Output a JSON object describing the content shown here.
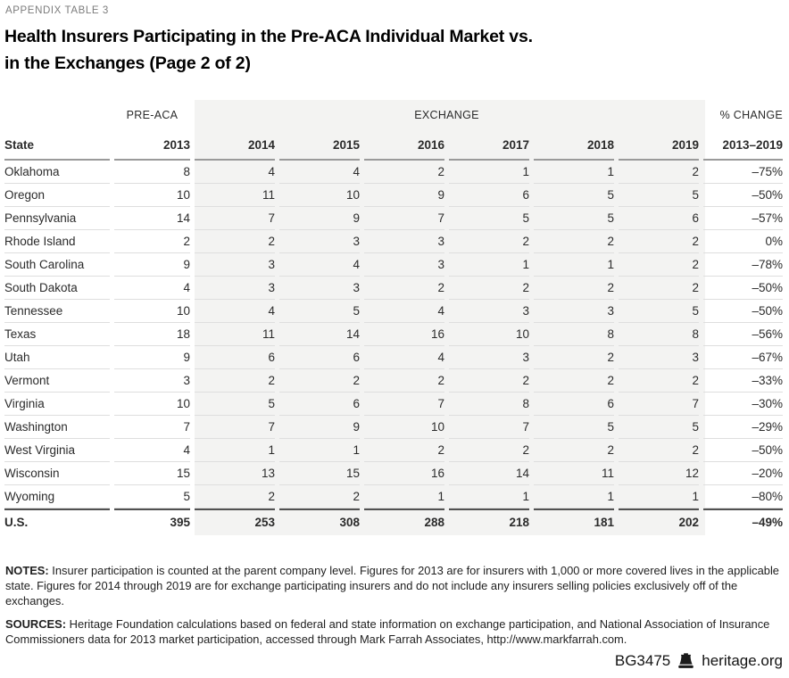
{
  "eyebrow": "APPENDIX TABLE 3",
  "title": "Health Insurers Participating in the Pre-ACA Individual Market vs.\nin the Exchanges (Page 2 of 2)",
  "table": {
    "group_headers": {
      "pre_aca": "PRE-ACA",
      "exchange": "EXCHANGE",
      "pct_change": "% CHANGE"
    },
    "columns": [
      "State",
      "2013",
      "2014",
      "2015",
      "2016",
      "2017",
      "2018",
      "2019",
      "2013–2019"
    ],
    "rows": [
      {
        "state": "Oklahoma",
        "values": [
          "8",
          "4",
          "4",
          "2",
          "1",
          "1",
          "2"
        ],
        "change": "–75%"
      },
      {
        "state": "Oregon",
        "values": [
          "10",
          "11",
          "10",
          "9",
          "6",
          "5",
          "5"
        ],
        "change": "–50%"
      },
      {
        "state": "Pennsylvania",
        "values": [
          "14",
          "7",
          "9",
          "7",
          "5",
          "5",
          "6"
        ],
        "change": "–57%"
      },
      {
        "state": "Rhode Island",
        "values": [
          "2",
          "2",
          "3",
          "3",
          "2",
          "2",
          "2"
        ],
        "change": "0%"
      },
      {
        "state": "South Carolina",
        "values": [
          "9",
          "3",
          "4",
          "3",
          "1",
          "1",
          "2"
        ],
        "change": "–78%"
      },
      {
        "state": "South Dakota",
        "values": [
          "4",
          "3",
          "3",
          "2",
          "2",
          "2",
          "2"
        ],
        "change": "–50%"
      },
      {
        "state": "Tennessee",
        "values": [
          "10",
          "4",
          "5",
          "4",
          "3",
          "3",
          "5"
        ],
        "change": "–50%"
      },
      {
        "state": "Texas",
        "values": [
          "18",
          "11",
          "14",
          "16",
          "10",
          "8",
          "8"
        ],
        "change": "–56%"
      },
      {
        "state": "Utah",
        "values": [
          "9",
          "6",
          "6",
          "4",
          "3",
          "2",
          "3"
        ],
        "change": "–67%"
      },
      {
        "state": "Vermont",
        "values": [
          "3",
          "2",
          "2",
          "2",
          "2",
          "2",
          "2"
        ],
        "change": "–33%"
      },
      {
        "state": "Virginia",
        "values": [
          "10",
          "5",
          "6",
          "7",
          "8",
          "6",
          "7"
        ],
        "change": "–30%"
      },
      {
        "state": "Washington",
        "values": [
          "7",
          "7",
          "9",
          "10",
          "7",
          "5",
          "5"
        ],
        "change": "–29%"
      },
      {
        "state": "West Virginia",
        "values": [
          "4",
          "1",
          "1",
          "2",
          "2",
          "2",
          "2"
        ],
        "change": "–50%"
      },
      {
        "state": "Wisconsin",
        "values": [
          "15",
          "13",
          "15",
          "16",
          "14",
          "11",
          "12"
        ],
        "change": "–20%"
      },
      {
        "state": "Wyoming",
        "values": [
          "5",
          "2",
          "2",
          "1",
          "1",
          "1",
          "1"
        ],
        "change": "–80%"
      }
    ],
    "total_row": {
      "state": "U.S.",
      "values": [
        "395",
        "253",
        "308",
        "288",
        "218",
        "181",
        "202"
      ],
      "change": "–49%"
    }
  },
  "notes": {
    "label": "NOTES:",
    "text": " Insurer participation is counted at the parent company level. Figures for 2013 are for insurers with 1,000 or more covered lives in the applicable state. Figures for 2014 through 2019 are for exchange participating insurers and do not include any insurers selling policies exclusively off of the exchanges."
  },
  "sources": {
    "label": "SOURCES:",
    "text": " Heritage Foundation calculations based on federal and state information on exchange participation, and National Association of Insurance Commissioners data for 2013 market participation, accessed through Mark Farrah Associates, http://www.markfarrah.com."
  },
  "footer": {
    "id": "BG3475",
    "site": "heritage.org",
    "logo": "liberty-bell-icon"
  },
  "colors": {
    "exchange_band": "#f3f3f2",
    "header_rule": "#9a9a9a",
    "total_rule": "#515151",
    "row_rule": "#dedede",
    "eyebrow_text": "#7c7c7c",
    "title_text": "#000000",
    "body_text": "#2b2b2b"
  }
}
